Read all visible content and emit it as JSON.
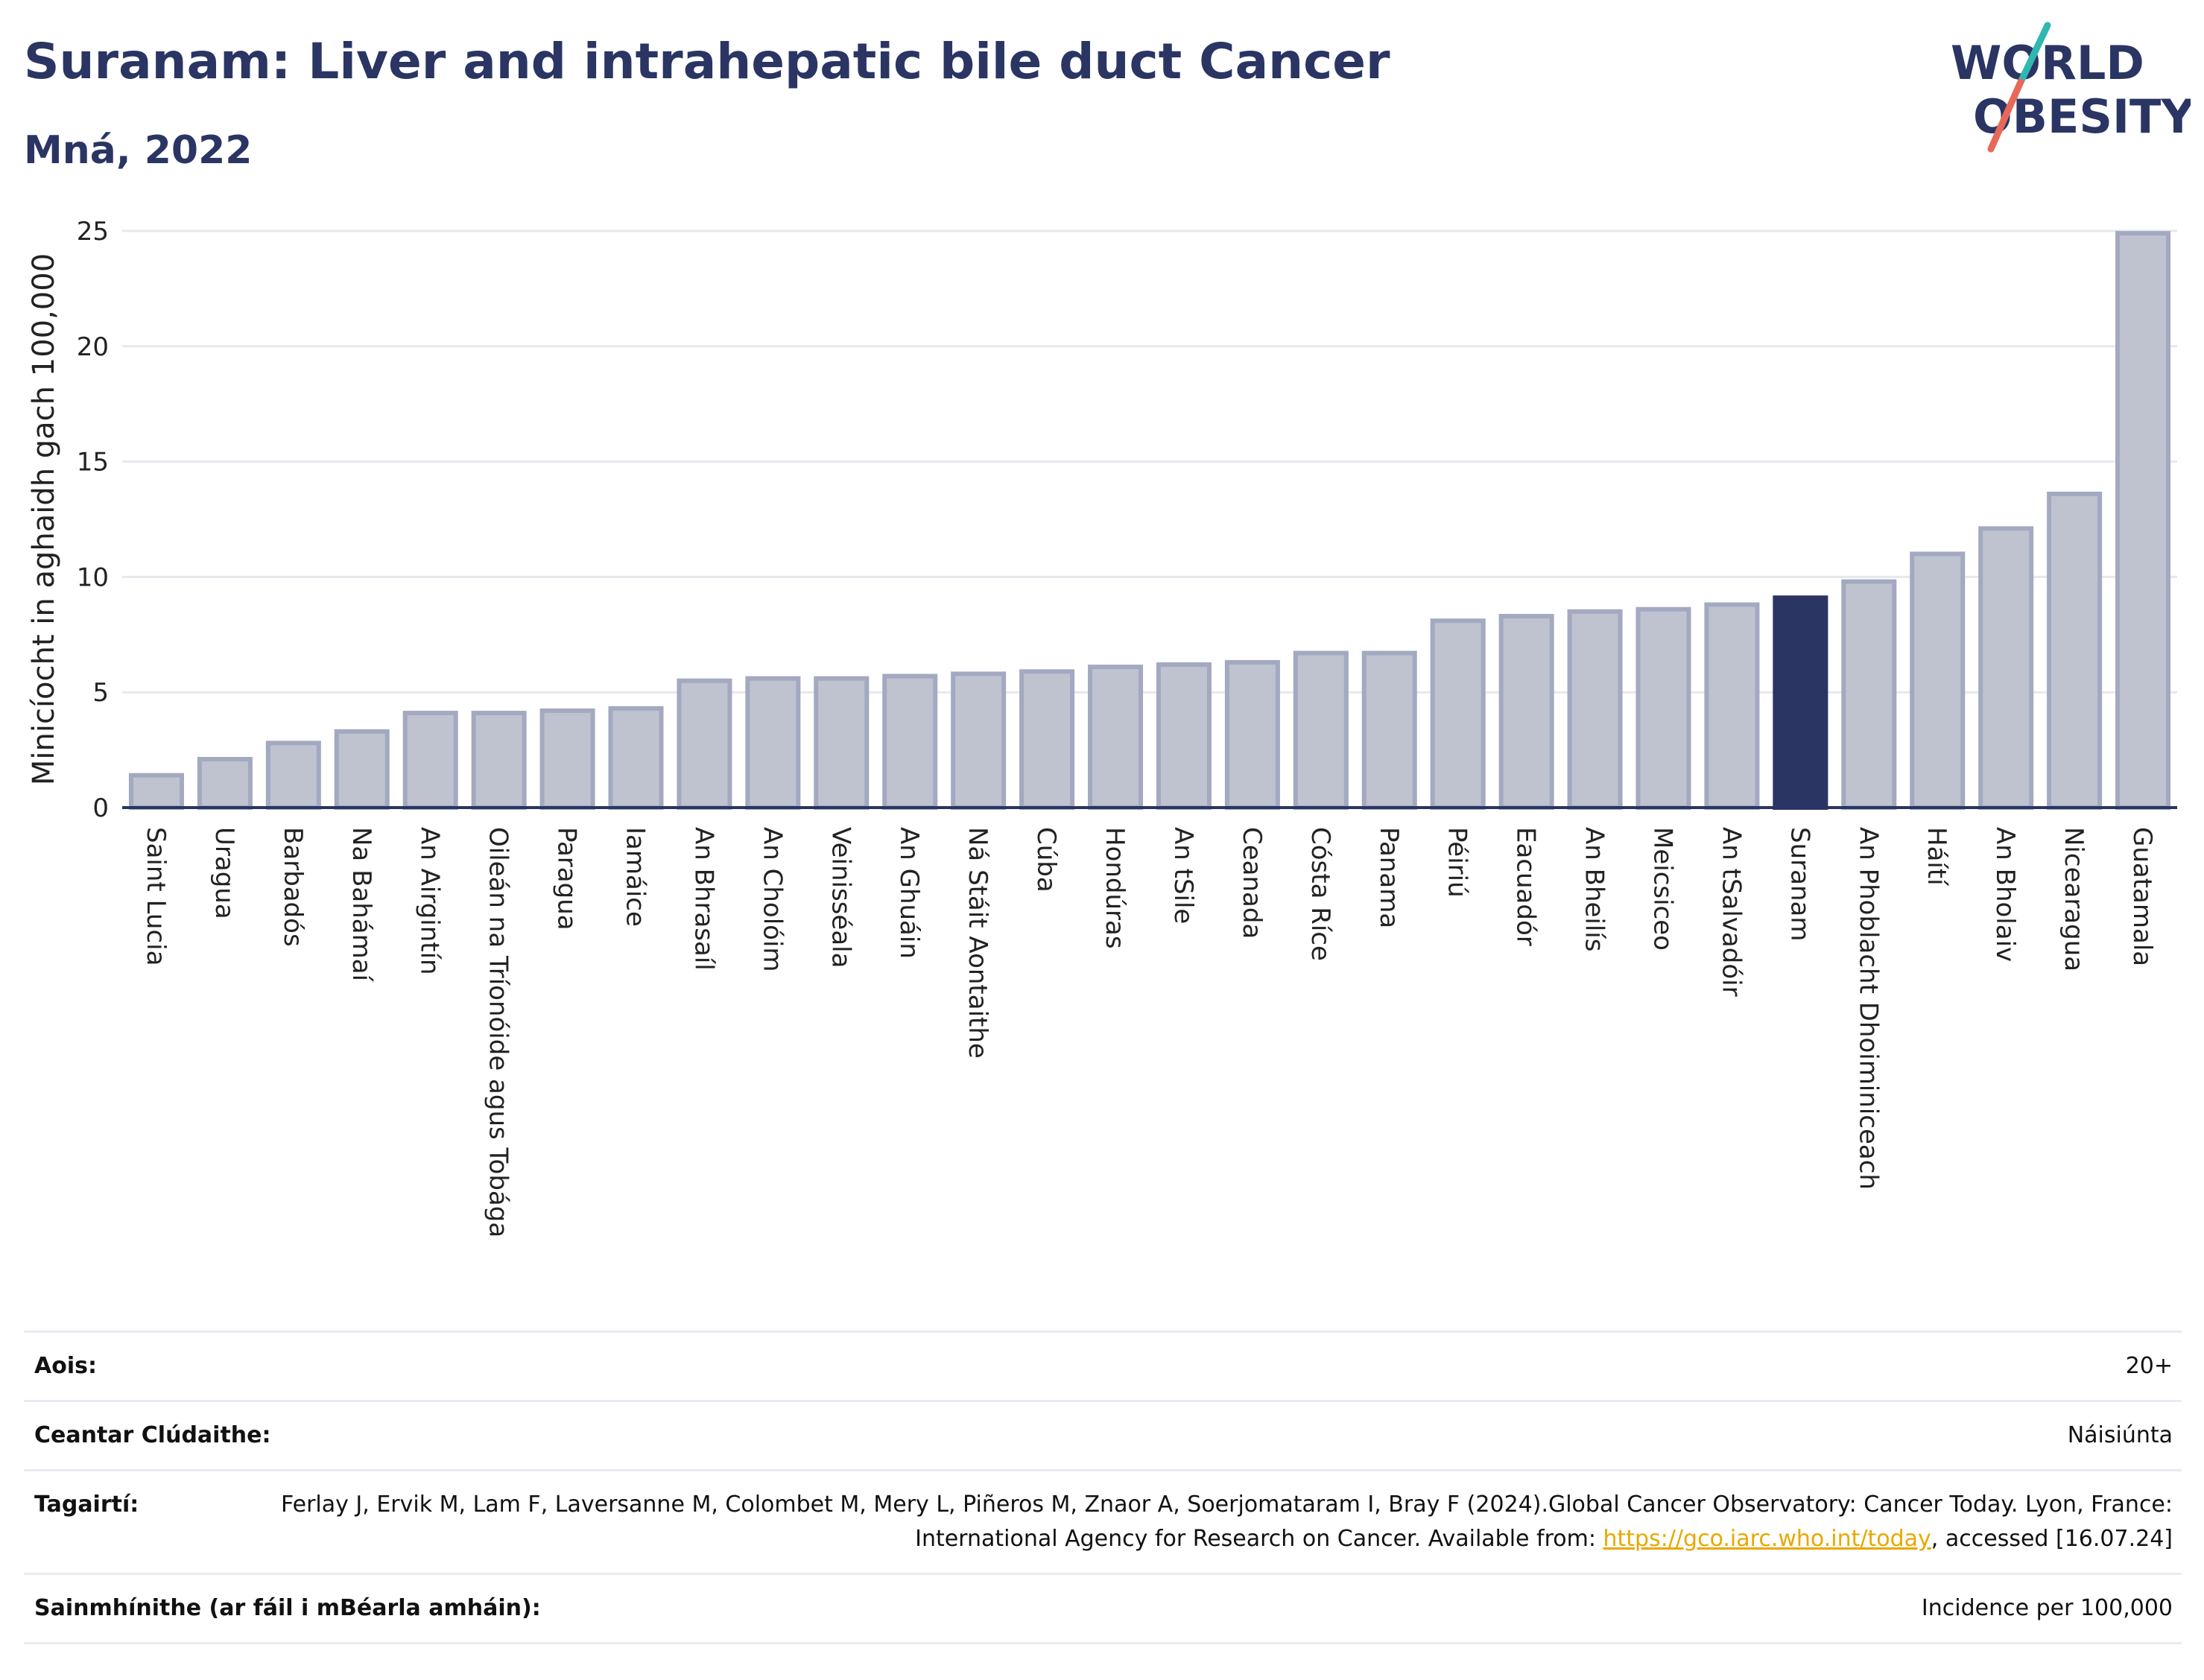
{
  "header": {
    "title": "Suranam: Liver and intrahepatic bile duct Cancer",
    "subtitle": "Mná, 2022"
  },
  "logo": {
    "line1": "WORLD",
    "line2": "OBESITY",
    "icon": "world-obesity-logo"
  },
  "chart_data": {
    "type": "bar",
    "title": "Suranam: Liver and intrahepatic bile duct Cancer",
    "subtitle": "Mná, 2022",
    "xlabel": "",
    "ylabel": "Minicíocht in aghaidh gach 100,000",
    "ylim": [
      0,
      25
    ],
    "yticks": [
      0,
      5,
      10,
      15,
      20,
      25
    ],
    "grid": true,
    "legend": "none",
    "categories": [
      "Saint Lucia",
      "Uragua",
      "Barbadós",
      "Na Bahámaí",
      "An Airgintín",
      "Oileán na Tríonóide agus Tobága",
      "Paragua",
      "Iamáice",
      "An Bhrasaíl",
      "An Cholóim",
      "Veinisséala",
      "An Ghuáin",
      "Ná Stáit Aontaithe",
      "Cúba",
      "Hondúras",
      "An tSile",
      "Ceanada",
      "Cósta Ríce",
      "Panama",
      "Péiriú",
      "Eacuadór",
      "An Bheilís",
      "Meicsiceo",
      "An tSalvadóir",
      "Suranam",
      "An Phoblacht Dhoiminiceach",
      "Háítí",
      "An Bholaiv",
      "Nicearagua",
      "Guatamala"
    ],
    "values": [
      1.4,
      2.1,
      2.8,
      3.3,
      4.1,
      4.1,
      4.2,
      4.3,
      5.5,
      5.6,
      5.6,
      5.7,
      5.8,
      5.9,
      6.1,
      6.2,
      6.3,
      6.7,
      6.7,
      8.1,
      8.3,
      8.5,
      8.6,
      8.8,
      9.1,
      9.8,
      11.0,
      12.1,
      13.6,
      24.9
    ],
    "highlight": "Suranam",
    "colors": {
      "bar": "#bfc3d0",
      "bar_edge": "#a3a9c0",
      "highlight": "#2a3563",
      "grid": "#e6e8ee",
      "axis": "#2a3563"
    }
  },
  "meta": {
    "rows": [
      {
        "key": "Aois:",
        "value": "20+"
      },
      {
        "key": "Ceantar Clúdaithe:",
        "value": "Náisiúnta"
      },
      {
        "key": "Tagairtí:",
        "value_before": "Ferlay J, Ervik M, Lam F, Laversanne M, Colombet M, Mery L, Piñeros M, Znaor A, Soerjomataram I, Bray F (2024).Global Cancer Observatory: Cancer Today. Lyon, France: International Agency for Research on Cancer. Available from: ",
        "link": "https://gco.iarc.who.int/today",
        "value_after": ", accessed [16.07.24]"
      },
      {
        "key": "Sainmhínithe (ar fáil i mBéarla amháin):",
        "value": "Incidence per 100,000"
      }
    ]
  }
}
